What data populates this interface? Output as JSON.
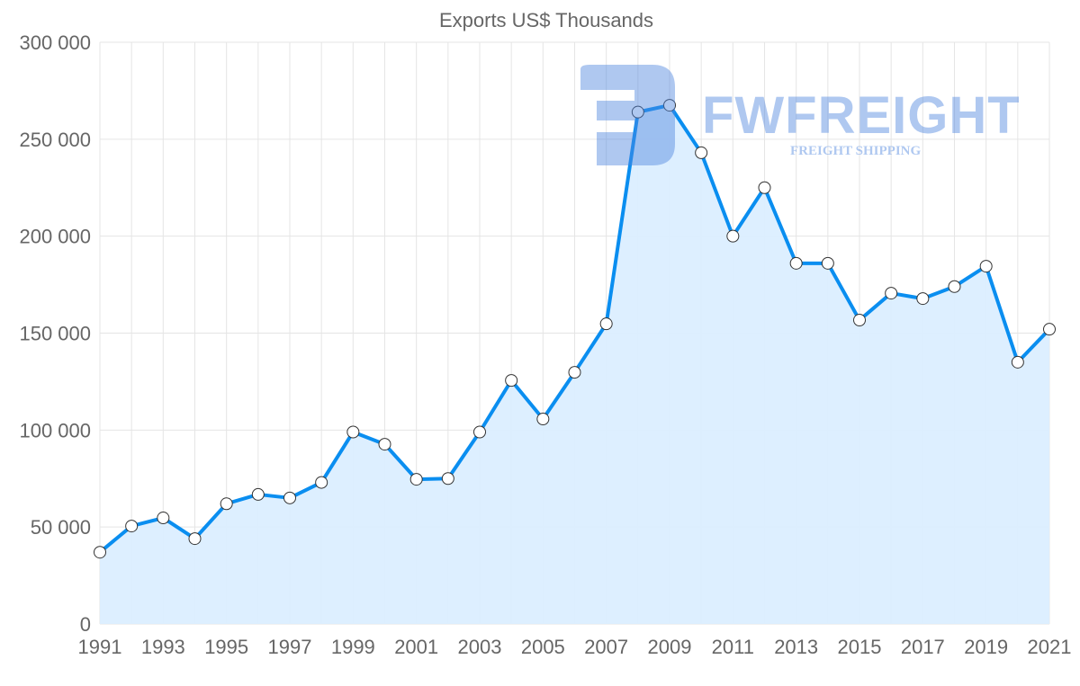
{
  "watermark": {
    "name": "FWFREIGHT",
    "tagline": "FREIGHT SHIPPING"
  },
  "chart_data": {
    "type": "area",
    "title": "Exports US$ Thousands",
    "xlabel": "",
    "ylabel": "",
    "ylim": [
      0,
      300000
    ],
    "yticks": [
      0,
      50000,
      100000,
      150000,
      200000,
      250000,
      300000
    ],
    "ytick_labels": [
      "0",
      "50 000",
      "100 000",
      "150 000",
      "200 000",
      "250 000",
      "300 000"
    ],
    "xtick_labels": [
      "1991",
      "1993",
      "1995",
      "1997",
      "1999",
      "2001",
      "2003",
      "2005",
      "2007",
      "2009",
      "2011",
      "2013",
      "2015",
      "2017",
      "2019",
      "2021"
    ],
    "grid": true,
    "colors": {
      "line": "#0a8ef0",
      "fill": "#dbeeff",
      "grid": "#e5e5e5",
      "text": "#666666"
    },
    "x": [
      1991,
      1992,
      1993,
      1994,
      1995,
      1996,
      1997,
      1998,
      1999,
      2000,
      2001,
      2002,
      2003,
      2004,
      2005,
      2006,
      2007,
      2008,
      2009,
      2010,
      2011,
      2012,
      2013,
      2014,
      2015,
      2016,
      2017,
      2018,
      2019,
      2020,
      2021
    ],
    "series": [
      {
        "name": "Exports",
        "values": [
          37000,
          50500,
          54700,
          44000,
          62000,
          66800,
          65000,
          73000,
          99000,
          92700,
          74600,
          75000,
          99000,
          125600,
          105700,
          129800,
          154800,
          264000,
          267500,
          243000,
          200000,
          225000,
          186000,
          186000,
          156700,
          170600,
          167800,
          174000,
          184500,
          135000,
          152000
        ]
      }
    ]
  }
}
